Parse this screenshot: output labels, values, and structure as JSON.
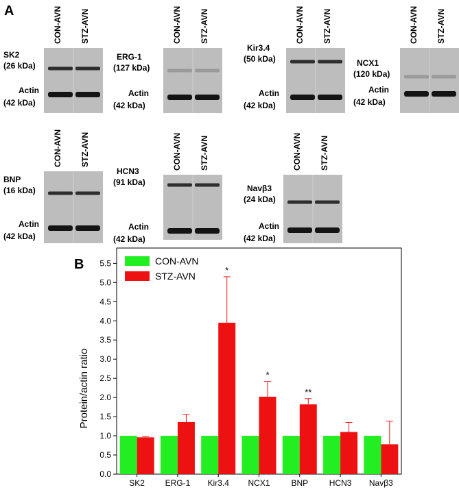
{
  "panel_a": {
    "label": "A",
    "lanes": [
      "CON-AVN",
      "STZ-AVN"
    ],
    "blots": [
      {
        "protein": "SK2",
        "size": "(26 kDa)",
        "actin": "Actin",
        "actin_size": "(42 kDa)"
      },
      {
        "protein": "ERG-1",
        "size": "(127 kDa)",
        "actin": "Actin",
        "actin_size": "(42 kDa)"
      },
      {
        "protein": "Kir3.4",
        "size": "(50 kDa)",
        "actin": "Actin",
        "actin_size": "(42 kDa)"
      },
      {
        "protein": "NCX1",
        "size": "(120 kDa)",
        "actin": "Actin",
        "actin_size": "(42 kDa)"
      },
      {
        "protein": "BNP",
        "size": "(16 kDa)",
        "actin": "Actin",
        "actin_size": "(42 kDa)"
      },
      {
        "protein": "HCN3",
        "size": "(91 kDa)",
        "actin": "Actin",
        "actin_size": "(42 kDa)"
      },
      {
        "protein": "Navβ3",
        "size": "(24 kDa)",
        "actin": "Actin",
        "actin_size": "(42 kDa)"
      }
    ]
  },
  "chart_data": {
    "type": "bar",
    "panel_label": "B",
    "y_label": "Protein/actin ratio",
    "categories": [
      "SK2",
      "ERG-1",
      "Kir3.4",
      "NCX1",
      "BNP",
      "HCN3",
      "Navβ3"
    ],
    "series": [
      {
        "name": "CON-AVN",
        "color": "#22ee22",
        "values": [
          1.0,
          1.0,
          1.0,
          1.0,
          1.0,
          1.0,
          1.0
        ]
      },
      {
        "name": "STZ-AVN",
        "color": "#ee1111",
        "values": [
          0.96,
          1.36,
          3.95,
          2.02,
          1.82,
          1.1,
          0.78
        ],
        "errors": [
          0.02,
          0.2,
          1.2,
          0.4,
          0.15,
          0.25,
          0.6
        ]
      }
    ],
    "significance": [
      null,
      null,
      "*",
      "*",
      "**",
      null,
      null
    ],
    "ylim": [
      0,
      5.9
    ],
    "yticks": [
      {
        "value": 0,
        "label": "0.0"
      },
      {
        "value": 0.5,
        "label": "0.5"
      },
      {
        "value": 1,
        "label": "1.0"
      },
      {
        "value": 1.5,
        "label": "1.5"
      },
      {
        "value": 2,
        "label": "2.0"
      },
      {
        "value": 2.5,
        "label": "2.5"
      },
      {
        "value": 3,
        "label": "3.0"
      },
      {
        "value": 3.5,
        "label": "3.5"
      },
      {
        "value": 4,
        "label": "4.0"
      },
      {
        "value": 4.5,
        "label": "4.5"
      },
      {
        "value": 5,
        "label": "5.0"
      },
      {
        "value": 5.5,
        "label": "5.5"
      }
    ],
    "legend": "upper left"
  }
}
